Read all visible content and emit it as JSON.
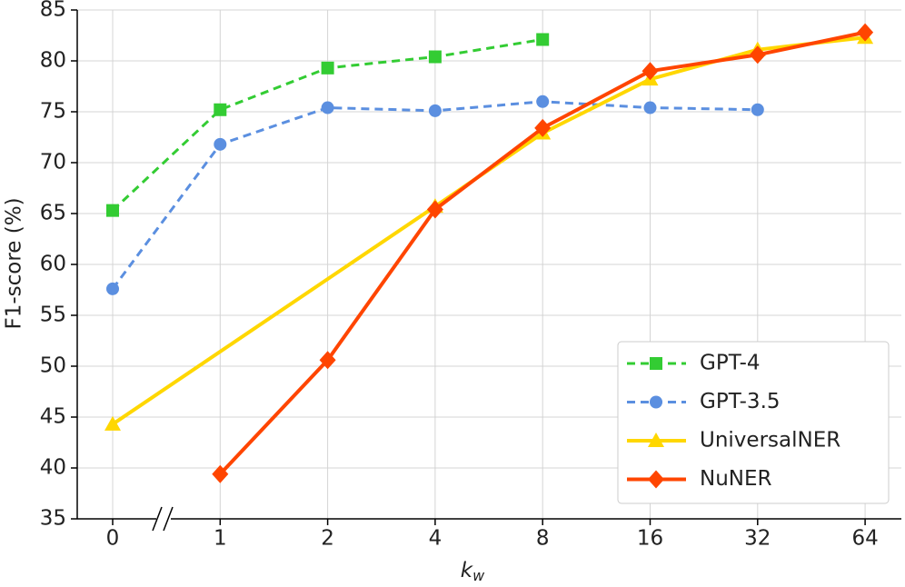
{
  "chart_data": {
    "type": "line",
    "xlabel": {
      "base": "k",
      "sub": "w"
    },
    "ylabel": "F1-score (%)",
    "categories": [
      "0",
      "1",
      "2",
      "4",
      "8",
      "16",
      "32",
      "64"
    ],
    "ylim": [
      35,
      85
    ],
    "yticks": [
      35,
      40,
      45,
      50,
      55,
      60,
      65,
      70,
      75,
      80,
      85
    ],
    "grid": true,
    "legend": "lower right",
    "series": [
      {
        "name": "GPT-4",
        "color": "#33cc33",
        "dash": true,
        "marker": "square",
        "x": [
          "0",
          "1",
          "2",
          "4",
          "8"
        ],
        "values": [
          65.3,
          75.2,
          79.3,
          80.4,
          82.1
        ]
      },
      {
        "name": "GPT-3.5",
        "color": "#5b8fe0",
        "dash": true,
        "marker": "circle",
        "x": [
          "0",
          "1",
          "2",
          "4",
          "8",
          "16",
          "32"
        ],
        "values": [
          57.6,
          71.8,
          75.4,
          75.1,
          76.0,
          75.4,
          75.2
        ]
      },
      {
        "name": "UniversalNER",
        "color": "#ffd700",
        "dash": false,
        "marker": "triangle",
        "x": [
          "0",
          "4",
          "8",
          "16",
          "32",
          "64"
        ],
        "values": [
          44.3,
          65.7,
          72.9,
          78.2,
          81.1,
          82.3
        ]
      },
      {
        "name": "NuNER",
        "color": "#ff4500",
        "dash": false,
        "marker": "diamond",
        "x": [
          "1",
          "2",
          "4",
          "8",
          "16",
          "32",
          "64"
        ],
        "values": [
          39.4,
          50.6,
          65.4,
          73.4,
          79.0,
          80.6,
          82.8
        ]
      }
    ]
  }
}
